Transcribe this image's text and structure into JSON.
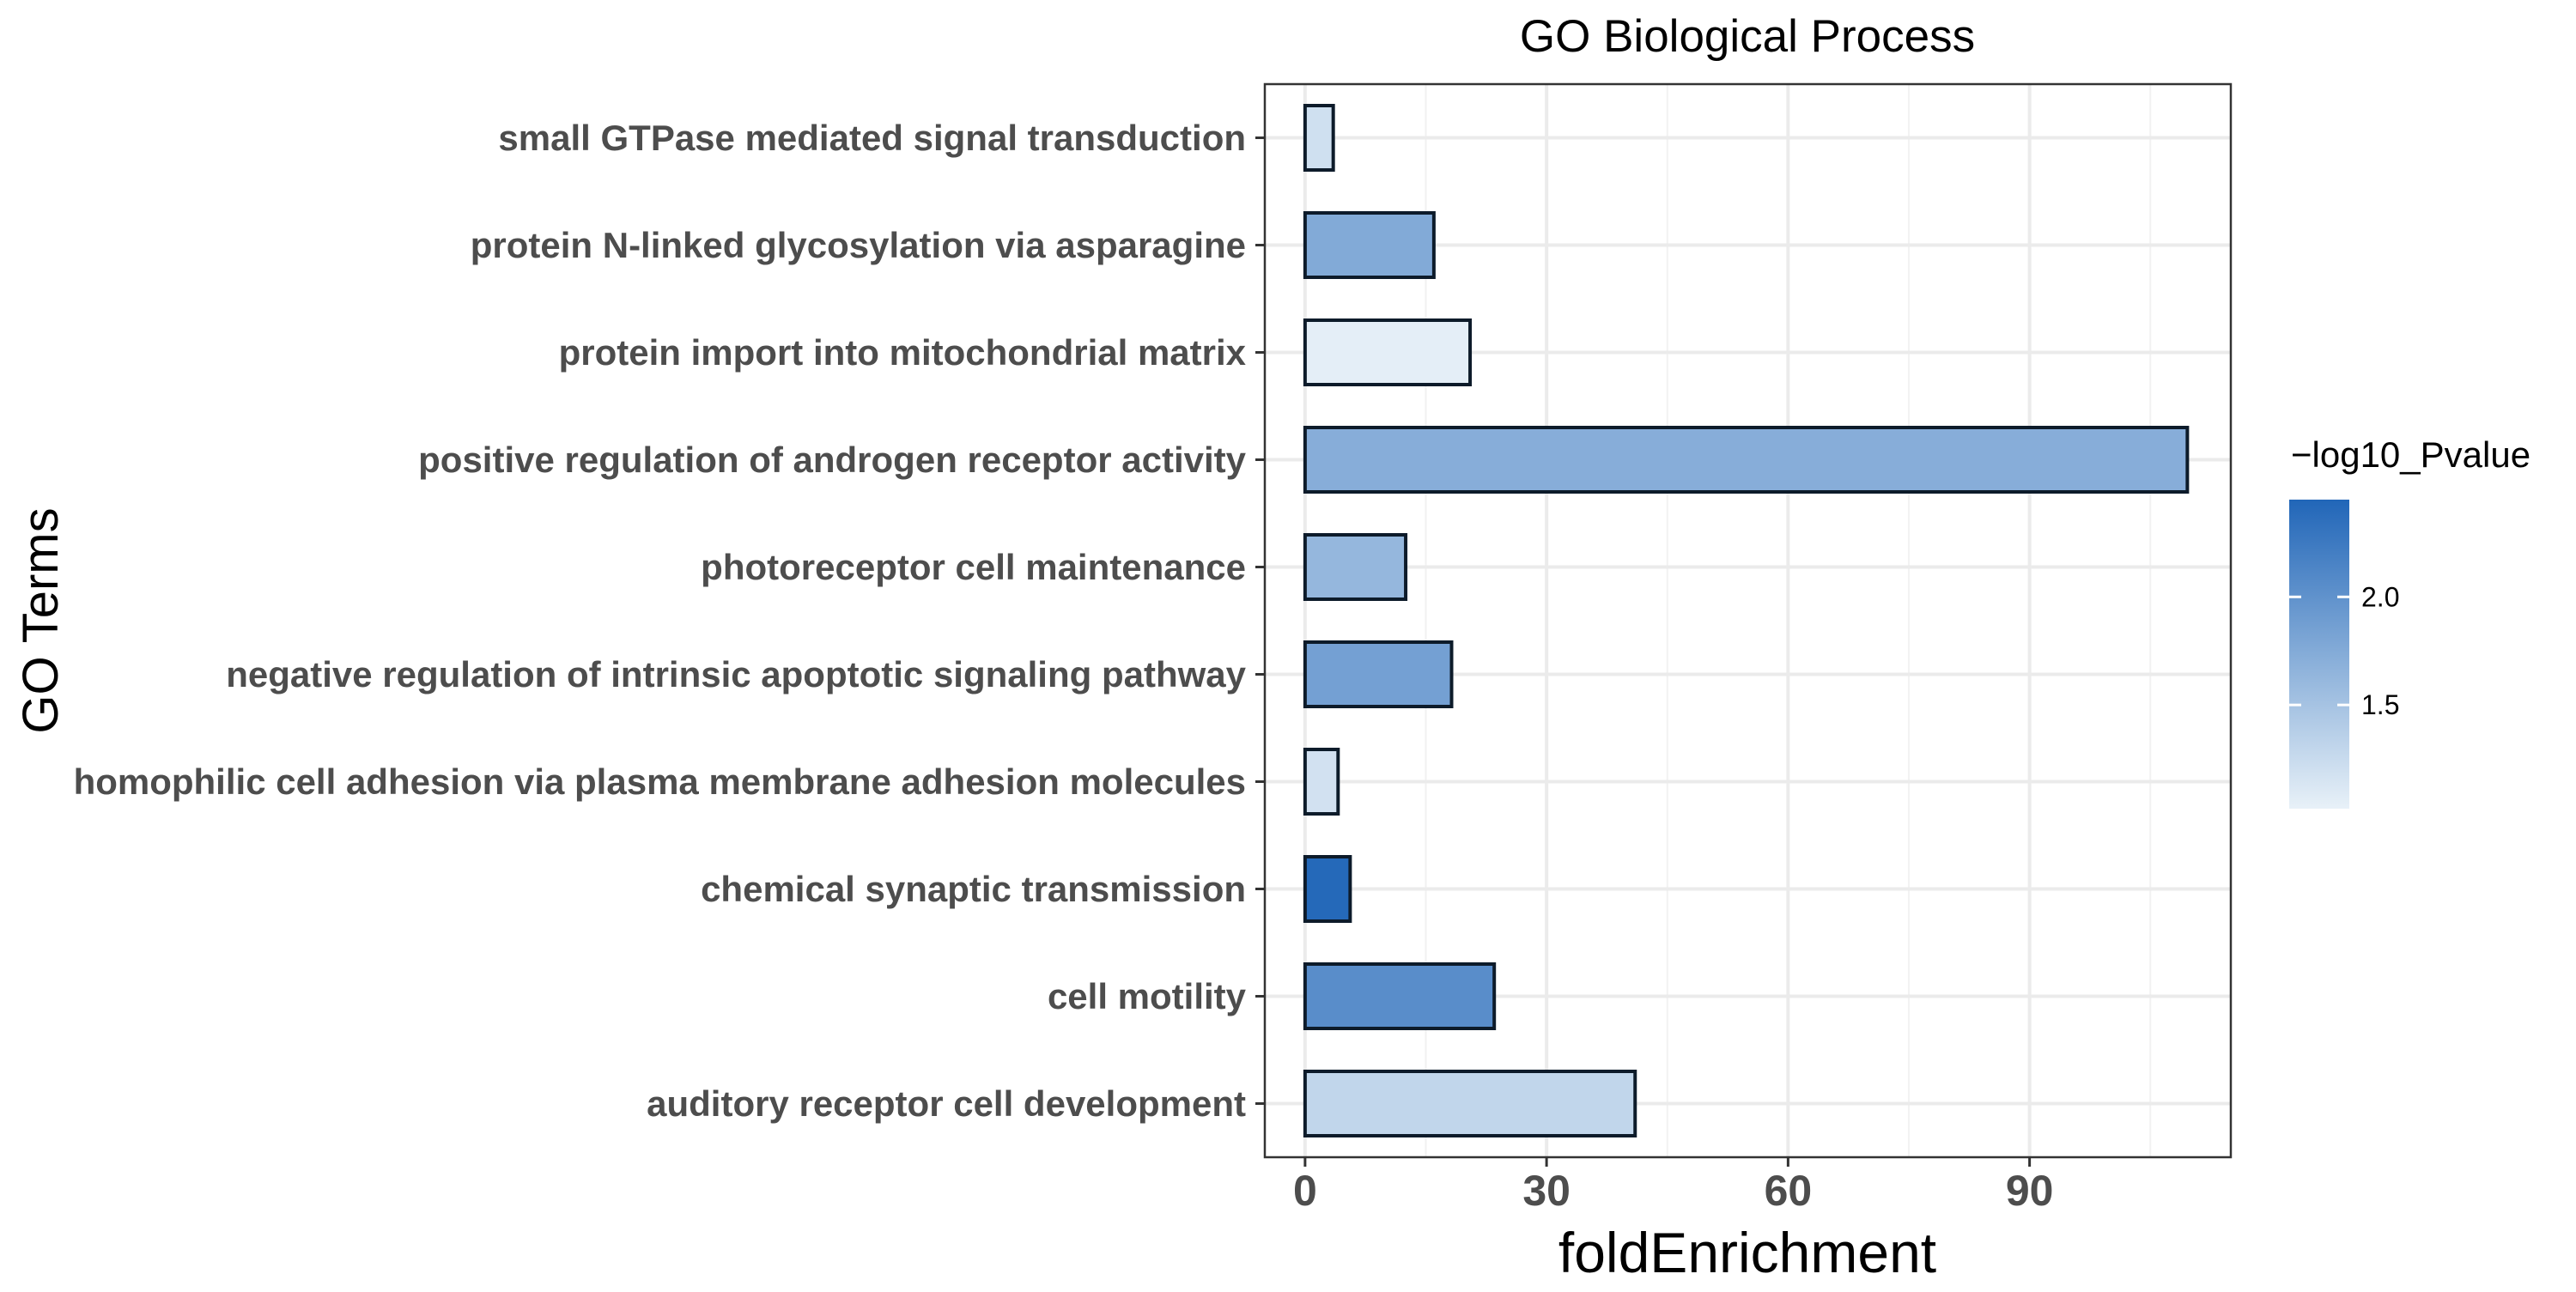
{
  "chart_data": {
    "type": "bar",
    "orientation": "horizontal",
    "title": "GO Biological Process",
    "xlabel": "foldEnrichment",
    "ylabel": "GO Terms",
    "xlim": [
      -5,
      115
    ],
    "xticks": [
      0,
      30,
      60,
      90
    ],
    "grid": true,
    "legend": {
      "title": "−log10_Pvalue",
      "placement": "right",
      "min": 1.02,
      "max": 2.45,
      "ticks": [
        1.5,
        2.0
      ],
      "tick_labels": [
        "1.5",
        "2.0"
      ],
      "color_low": "#e8f1f8",
      "color_high": "#2166b8"
    },
    "categories": [
      "small GTPase mediated signal transduction",
      "protein N-linked glycosylation via asparagine",
      "protein import into mitochondrial matrix",
      "positive regulation of androgen receptor activity",
      "photoreceptor cell maintenance",
      "negative regulation of intrinsic apoptotic signaling pathway",
      "homophilic cell adhesion via plasma membrane adhesion molecules",
      "chemical synaptic transmission",
      "cell motility",
      "auditory receptor cell development"
    ],
    "values": [
      3.5,
      16,
      20.5,
      109.6,
      12.5,
      18.2,
      4.1,
      5.6,
      23.5,
      41
    ],
    "color_values": [
      1.2,
      1.75,
      1.05,
      1.72,
      1.62,
      1.85,
      1.18,
      2.42,
      2.05,
      1.3
    ]
  }
}
